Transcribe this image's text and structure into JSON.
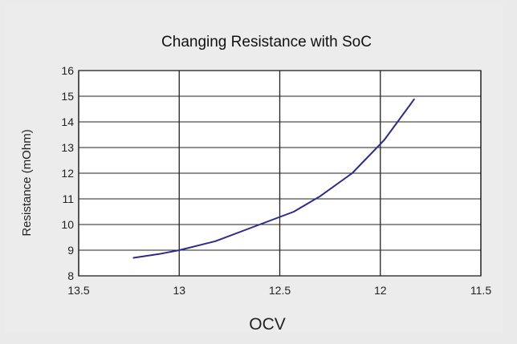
{
  "chart_data": {
    "type": "line",
    "title": "Changing Resistance with SoC",
    "xlabel": "OCV",
    "ylabel": "Resistance (mOhm)",
    "xlim": [
      13.5,
      11.5
    ],
    "ylim": [
      8,
      16
    ],
    "x_reversed": true,
    "x_ticks": [
      13.5,
      13,
      12.5,
      12,
      11.5
    ],
    "x_tick_labels": [
      "13.5",
      "13",
      "12.5",
      "12",
      "11.5"
    ],
    "y_ticks": [
      8,
      9,
      10,
      11,
      12,
      13,
      14,
      15,
      16
    ],
    "y_tick_labels": [
      "8",
      "9",
      "10",
      "11",
      "12",
      "13",
      "14",
      "15",
      "16"
    ],
    "grid": true,
    "legend": "none",
    "series": [
      {
        "name": "Resistance",
        "color": "#2b2b8f",
        "x": [
          13.23,
          13.1,
          13.0,
          12.82,
          12.6,
          12.43,
          12.3,
          12.14,
          11.98,
          11.83
        ],
        "y": [
          8.7,
          8.85,
          9.0,
          9.35,
          10.0,
          10.5,
          11.1,
          12.0,
          13.3,
          14.9
        ]
      }
    ]
  }
}
